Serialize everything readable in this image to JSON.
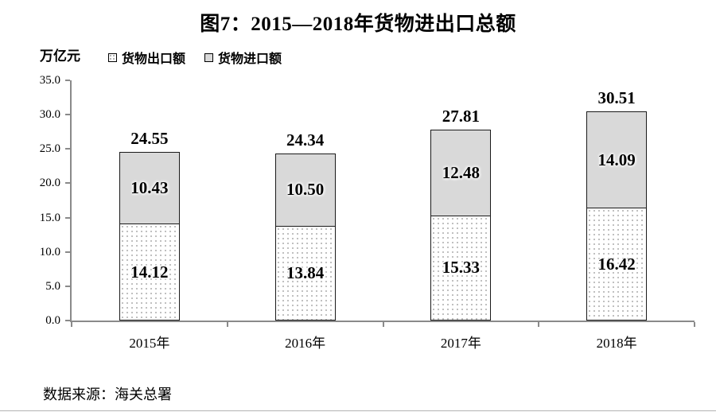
{
  "title": "图7：2015—2018年货物进出口总额",
  "unit_label": "万亿元",
  "legend": [
    {
      "label": "货物出口额",
      "swatch": "dotted-pattern"
    },
    {
      "label": "货物进口额",
      "swatch": "gray-fill"
    }
  ],
  "source": "数据来源：海关总署",
  "colors": {
    "import_fill": "#d9d9d9",
    "export_fill": "#ffffff",
    "export_dot": "#ababab",
    "bar_border": "#1a1a1a",
    "axis": "#8a8a8a",
    "text": "#000000"
  },
  "chart_data": {
    "type": "bar",
    "stacked": true,
    "title": "图7：2015—2018年货物进出口总额",
    "ylabel": "万亿元",
    "categories": [
      "2015年",
      "2016年",
      "2017年",
      "2018年"
    ],
    "series": [
      {
        "name": "货物出口额",
        "values": [
          14.12,
          13.84,
          15.33,
          16.42
        ],
        "labels": [
          "14.12",
          "13.84",
          "15.33",
          "16.42"
        ]
      },
      {
        "name": "货物进口额",
        "values": [
          10.43,
          10.5,
          12.48,
          14.09
        ],
        "labels": [
          "10.43",
          "10.50",
          "12.48",
          "14.09"
        ]
      }
    ],
    "totals": [
      24.55,
      24.34,
      27.81,
      30.51
    ],
    "total_labels": [
      "24.55",
      "24.34",
      "27.81",
      "30.51"
    ],
    "ylim": [
      0,
      35
    ],
    "ytick_step": 5,
    "ytick_labels": [
      "0.0",
      "5.0",
      "10.0",
      "15.0",
      "20.0",
      "25.0",
      "30.0",
      "35.0"
    ],
    "grid": false,
    "legend_position": "top-left"
  }
}
